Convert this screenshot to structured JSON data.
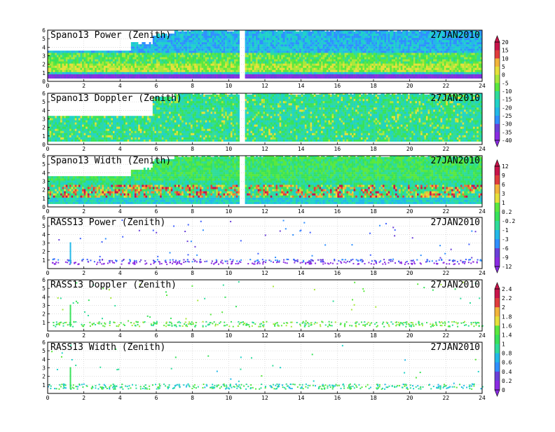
{
  "date_label": "27JAN2010",
  "chart_data": [
    {
      "type": "heatmap",
      "title": "Spano13 Power (Zenith)",
      "xlim": [
        0,
        24
      ],
      "ylim": [
        0,
        6
      ],
      "x_ticks": [
        0,
        2,
        4,
        6,
        8,
        10,
        12,
        14,
        16,
        18,
        20,
        22,
        24
      ],
      "y_ticks": [
        0,
        1,
        2,
        3,
        4,
        5,
        6
      ],
      "colorbar_group": "a",
      "grid": true
    },
    {
      "type": "heatmap",
      "title": "Spano13 Doppler (Zenith)",
      "xlim": [
        0,
        24
      ],
      "ylim": [
        0,
        6
      ],
      "x_ticks": [
        0,
        2,
        4,
        6,
        8,
        10,
        12,
        14,
        16,
        18,
        20,
        22,
        24
      ],
      "y_ticks": [
        0,
        1,
        2,
        3,
        4,
        5,
        6
      ],
      "colorbar_group": "a",
      "grid": true
    },
    {
      "type": "heatmap",
      "title": "Spano13 Width (Zenith)",
      "xlim": [
        0,
        24
      ],
      "ylim": [
        0,
        6
      ],
      "x_ticks": [
        0,
        2,
        4,
        6,
        8,
        10,
        12,
        14,
        16,
        18,
        20,
        22,
        24
      ],
      "y_ticks": [
        0,
        1,
        2,
        3,
        4,
        5,
        6
      ],
      "colorbar_group": "b",
      "grid": true
    },
    {
      "type": "scatter",
      "title": "RASS13 Power (Zenith)",
      "xlim": [
        0,
        24
      ],
      "ylim": [
        0,
        6
      ],
      "x_ticks": [
        0,
        2,
        4,
        6,
        8,
        10,
        12,
        14,
        16,
        18,
        20,
        22,
        24
      ],
      "y_ticks": [
        1,
        2,
        3,
        4,
        5,
        6
      ],
      "colorbar_group": "b",
      "grid": true
    },
    {
      "type": "scatter",
      "title": "RASS13 Doppler (Zenith)",
      "xlim": [
        0,
        24
      ],
      "ylim": [
        0,
        6
      ],
      "x_ticks": [
        0,
        2,
        4,
        6,
        8,
        10,
        12,
        14,
        16,
        18,
        20,
        22,
        24
      ],
      "y_ticks": [
        1,
        2,
        3,
        4,
        5,
        6
      ],
      "colorbar_group": "c",
      "grid": true
    },
    {
      "type": "scatter",
      "title": "RASS13 Width (Zenith)",
      "xlim": [
        0,
        24
      ],
      "ylim": [
        0,
        6
      ],
      "x_ticks": [
        0,
        2,
        4,
        6,
        8,
        10,
        12,
        14,
        16,
        18,
        20,
        22,
        24
      ],
      "y_ticks": [
        1,
        2,
        3,
        4,
        5,
        6
      ],
      "colorbar_group": "c",
      "grid": true
    }
  ],
  "colorbars": [
    {
      "id": "a",
      "labels": [
        "20",
        "15",
        "10",
        "5",
        "0",
        "-5",
        "-10",
        "-15",
        "-20",
        "-25",
        "-30",
        "-35",
        "-40"
      ]
    },
    {
      "id": "b",
      "labels": [
        "12",
        "9",
        "6",
        "3",
        "1",
        "0.2",
        "-0.2",
        "-1",
        "-3",
        "-6",
        "-9",
        "-12"
      ]
    },
    {
      "id": "c",
      "labels": [
        "2.4",
        "2.2",
        "2",
        "1.8",
        "1.6",
        "1.4",
        "1",
        "0.8",
        "0.6",
        "0.4",
        "0.2",
        "0"
      ]
    }
  ],
  "colors": {
    "palette": [
      "#8a2be2",
      "#6a3fd8",
      "#4060ff",
      "#2f8fff",
      "#22b8e8",
      "#20d2c8",
      "#2edc9a",
      "#38e25a",
      "#5ae83e",
      "#a8e83a",
      "#e6e03a",
      "#f2b43a",
      "#ee7a34",
      "#e03c3c",
      "#c8144a"
    ]
  }
}
